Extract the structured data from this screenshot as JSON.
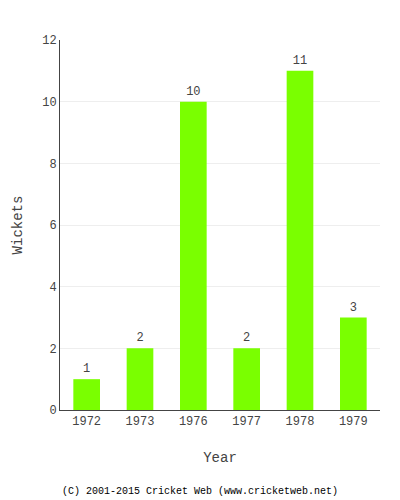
{
  "chart_data": {
    "type": "bar",
    "categories": [
      "1972",
      "1973",
      "1976",
      "1977",
      "1978",
      "1979"
    ],
    "values": [
      1,
      2,
      10,
      2,
      11,
      3
    ],
    "color": "#7aff00",
    "xlabel": "Year",
    "ylabel": "Wickets",
    "ylim": [
      0,
      12
    ],
    "yticks": [
      0,
      2,
      4,
      6,
      8,
      10,
      12
    ],
    "grid": true,
    "data_labels": true,
    "annotations": [
      "(C) 2001-2015 Cricket Web (www.cricketweb.net)"
    ]
  }
}
